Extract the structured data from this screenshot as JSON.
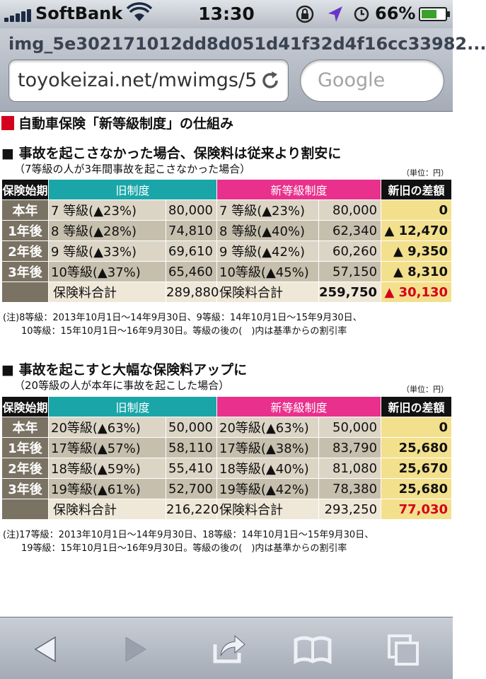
{
  "status_bar": {
    "carrier": "SoftBank",
    "time": "13:30",
    "battery": "66%",
    "battery_level": 0.66
  },
  "browser": {
    "page_title": "img_5e302171012dd8d051d41f32d4f16cc33982...",
    "url": "toyokeizai.net/mwimgs/5",
    "search_placeholder": "Google"
  },
  "article": {
    "title": "自動車保険「新等級制度」の仕組み",
    "tables": [
      {
        "heading": "■ 事故を起こさなかった場合、保険料は従来より割安に",
        "subheading": "（7等級の人が3年間事故を起こさなかった場合）",
        "unit": "（単位：円）",
        "headers": {
          "start": "保険始期",
          "old": "旧制度",
          "new": "新等級制度",
          "diff": "新旧の差額"
        },
        "rows": [
          {
            "year": "本年",
            "old_grade": "7 等級(▲23%)",
            "old_value": "80,000",
            "new_grade": "7 等級(▲23%)",
            "new_value": "80,000",
            "diff": "0"
          },
          {
            "year": "1年後",
            "old_grade": "8 等級(▲28%)",
            "old_value": "74,810",
            "new_grade": "8 等級(▲40%)",
            "new_value": "62,340",
            "diff": "▲ 12,470"
          },
          {
            "year": "2年後",
            "old_grade": "9 等級(▲33%)",
            "old_value": "69,610",
            "new_grade": "9 等級(▲42%)",
            "new_value": "60,260",
            "diff": "▲ 9,350"
          },
          {
            "year": "3年後",
            "old_grade": "10等級(▲37%)",
            "old_value": "65,460",
            "new_grade": "10等級(▲45%)",
            "new_value": "57,150",
            "diff": "▲ 8,310"
          }
        ],
        "total": {
          "old_label": "保険料合計",
          "old_value": "289,880",
          "new_label": "保険料合計",
          "new_value": "259,750",
          "diff": "▲ 30,130"
        },
        "note_lines": [
          "(注)8等級：2013年10月1日～14年9月30日、9等級：14年10月1日～15年9月30日、",
          "10等級：15年10月1日～16年9月30日。等級の後の(　)内は基準からの割引率"
        ]
      },
      {
        "heading": "■ 事故を起こすと大幅な保険料アップに",
        "subheading": "（20等級の人が本年に事故を起こした場合）",
        "unit": "（単位：円）",
        "headers": {
          "start": "保険始期",
          "old": "旧制度",
          "new": "新等級制度",
          "diff": "新旧の差額"
        },
        "rows": [
          {
            "year": "本年",
            "old_grade": "20等級(▲63%)",
            "old_value": "50,000",
            "new_grade": "20等級(▲63%)",
            "new_value": "50,000",
            "diff": "0"
          },
          {
            "year": "1年後",
            "old_grade": "17等級(▲57%)",
            "old_value": "58,110",
            "new_grade": "17等級(▲38%)",
            "new_value": "83,790",
            "diff": "25,680"
          },
          {
            "year": "2年後",
            "old_grade": "18等級(▲59%)",
            "old_value": "55,410",
            "new_grade": "18等級(▲40%)",
            "new_value": "81,080",
            "diff": "25,670"
          },
          {
            "year": "3年後",
            "old_grade": "19等級(▲61%)",
            "old_value": "52,700",
            "new_grade": "19等級(▲42%)",
            "new_value": "78,380",
            "diff": "25,680"
          }
        ],
        "total": {
          "old_label": "保険料合計",
          "old_value": "216,220",
          "new_label": "保険料合計",
          "new_value": "293,250",
          "diff": "77,030"
        },
        "note_lines": [
          "(注)17等級：2013年10月1日～14年9月30日、18等級：14年10月1日～15年9月30日、",
          "19等級：15年10月1日～16年9月30日。等級の後の(　)内は基準からの割引率"
        ]
      }
    ]
  },
  "icons": {
    "back": "back-arrow-icon",
    "forward": "forward-arrow-icon",
    "share": "share-icon",
    "bookmarks": "bookmarks-icon",
    "tabs": "tabs-icon"
  },
  "colors": {
    "old_header": "#1aa6a8",
    "new_header": "#e8308c",
    "diff_cell": "#f3e08d",
    "accent_red": "#d5001c"
  }
}
